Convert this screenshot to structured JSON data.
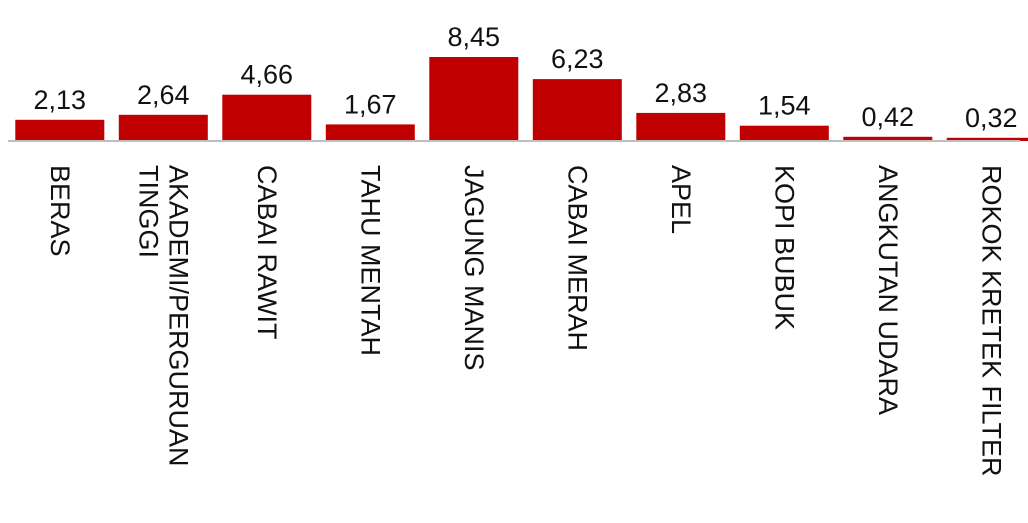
{
  "chart_data": {
    "type": "bar",
    "categories": [
      [
        "BERAS"
      ],
      [
        "AKADEMI/PERGURUAN",
        "TINGGI"
      ],
      [
        "CABAI RAWIT"
      ],
      [
        "TAHU MENTAH"
      ],
      [
        "JAGUNG MANIS"
      ],
      [
        "CABAI MERAH"
      ],
      [
        "APEL"
      ],
      [
        "KOPI BUBUK"
      ],
      [
        "ANGKUTAN UDARA"
      ],
      [
        "ROKOK KRETEK FILTER"
      ]
    ],
    "values": [
      2.13,
      2.64,
      4.66,
      1.67,
      8.45,
      6.23,
      2.83,
      1.54,
      0.42,
      0.32
    ],
    "data_labels": [
      "2,13",
      "2,64",
      "4,66",
      "1,67",
      "8,45",
      "6,23",
      "2,83",
      "1,54",
      "0,42",
      "0,32"
    ],
    "ylim": [
      0,
      8.45
    ],
    "grid": false,
    "legend": "none",
    "colors": {
      "bar": "#c00000",
      "axis": "#bfbfbf",
      "text": "#111111"
    }
  }
}
